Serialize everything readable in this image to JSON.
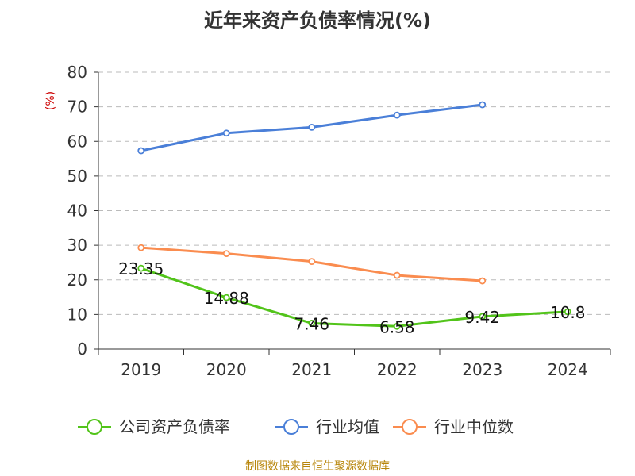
{
  "chart_data": {
    "type": "line",
    "title": "近年来资产负债率情况(%)",
    "ylabel": "(%)",
    "xlabel": "",
    "categories": [
      "2019",
      "2020",
      "2021",
      "2022",
      "2023",
      "2024"
    ],
    "ylim": [
      0,
      80
    ],
    "yticks": [
      0,
      10,
      20,
      30,
      40,
      50,
      60,
      70,
      80
    ],
    "grid": true,
    "legend_position": "bottom",
    "series": [
      {
        "name": "公司资产负债率",
        "color": "#52c41a",
        "values": [
          23.35,
          14.88,
          7.46,
          6.58,
          9.42,
          10.8
        ],
        "labels": [
          "23.35",
          "14.88",
          "7.46",
          "6.58",
          "9.42",
          "10.8"
        ]
      },
      {
        "name": "行业均值",
        "color": "#4a7fd8",
        "values": [
          57.3,
          62.4,
          64.1,
          67.6,
          70.6,
          null
        ]
      },
      {
        "name": "行业中位数",
        "color": "#fa8c4f",
        "values": [
          29.3,
          27.6,
          25.3,
          21.3,
          19.7,
          null
        ]
      }
    ]
  },
  "footer": {
    "source": "制图数据来自恒生聚源数据库"
  }
}
